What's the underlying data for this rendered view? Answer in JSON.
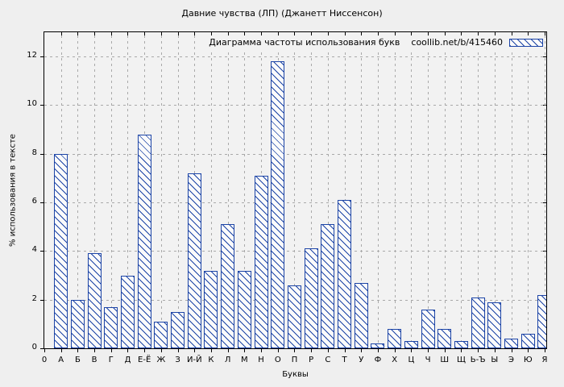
{
  "window": {
    "title": "Давние чувства (ЛП) (Джанетт Ниссенсон)"
  },
  "colors": {
    "bar_border": "#1c44a6",
    "bar_fill": "#fbfbfb",
    "grid": "#a9a9a9",
    "background": "#efefef",
    "plot_background": "#f2f2f2",
    "axis": "#000000"
  },
  "chart_data": {
    "type": "bar",
    "title": "Давние чувства (ЛП) (Джанетт Ниссенсон)",
    "legend_label": "Диаграмма частоты использования букв",
    "legend_source": "coollib.net/b/415460",
    "legend_position": "top-right",
    "xlabel": "Буквы",
    "ylabel": "% использования в тексте",
    "x_origin_label": "0",
    "ylim": [
      0,
      13
    ],
    "yticks": [
      0,
      2,
      4,
      6,
      8,
      10,
      12
    ],
    "grid": true,
    "hatch": "diagonal-backslash",
    "categories": [
      "А",
      "Б",
      "В",
      "Г",
      "Д",
      "Е-Ё",
      "Ж",
      "З",
      "И-Й",
      "К",
      "Л",
      "М",
      "Н",
      "О",
      "П",
      "Р",
      "С",
      "Т",
      "У",
      "Ф",
      "Х",
      "Ц",
      "Ч",
      "Ш",
      "Щ",
      "Ь-Ъ",
      "Ы",
      "Э",
      "Ю",
      "Я"
    ],
    "values": [
      8.0,
      2.0,
      3.9,
      1.7,
      3.0,
      8.8,
      1.1,
      1.5,
      7.2,
      3.2,
      5.1,
      3.2,
      7.1,
      11.8,
      2.6,
      4.1,
      5.1,
      6.1,
      2.7,
      0.2,
      0.8,
      0.3,
      1.6,
      0.8,
      0.3,
      2.1,
      1.9,
      0.4,
      0.6,
      2.2
    ]
  }
}
